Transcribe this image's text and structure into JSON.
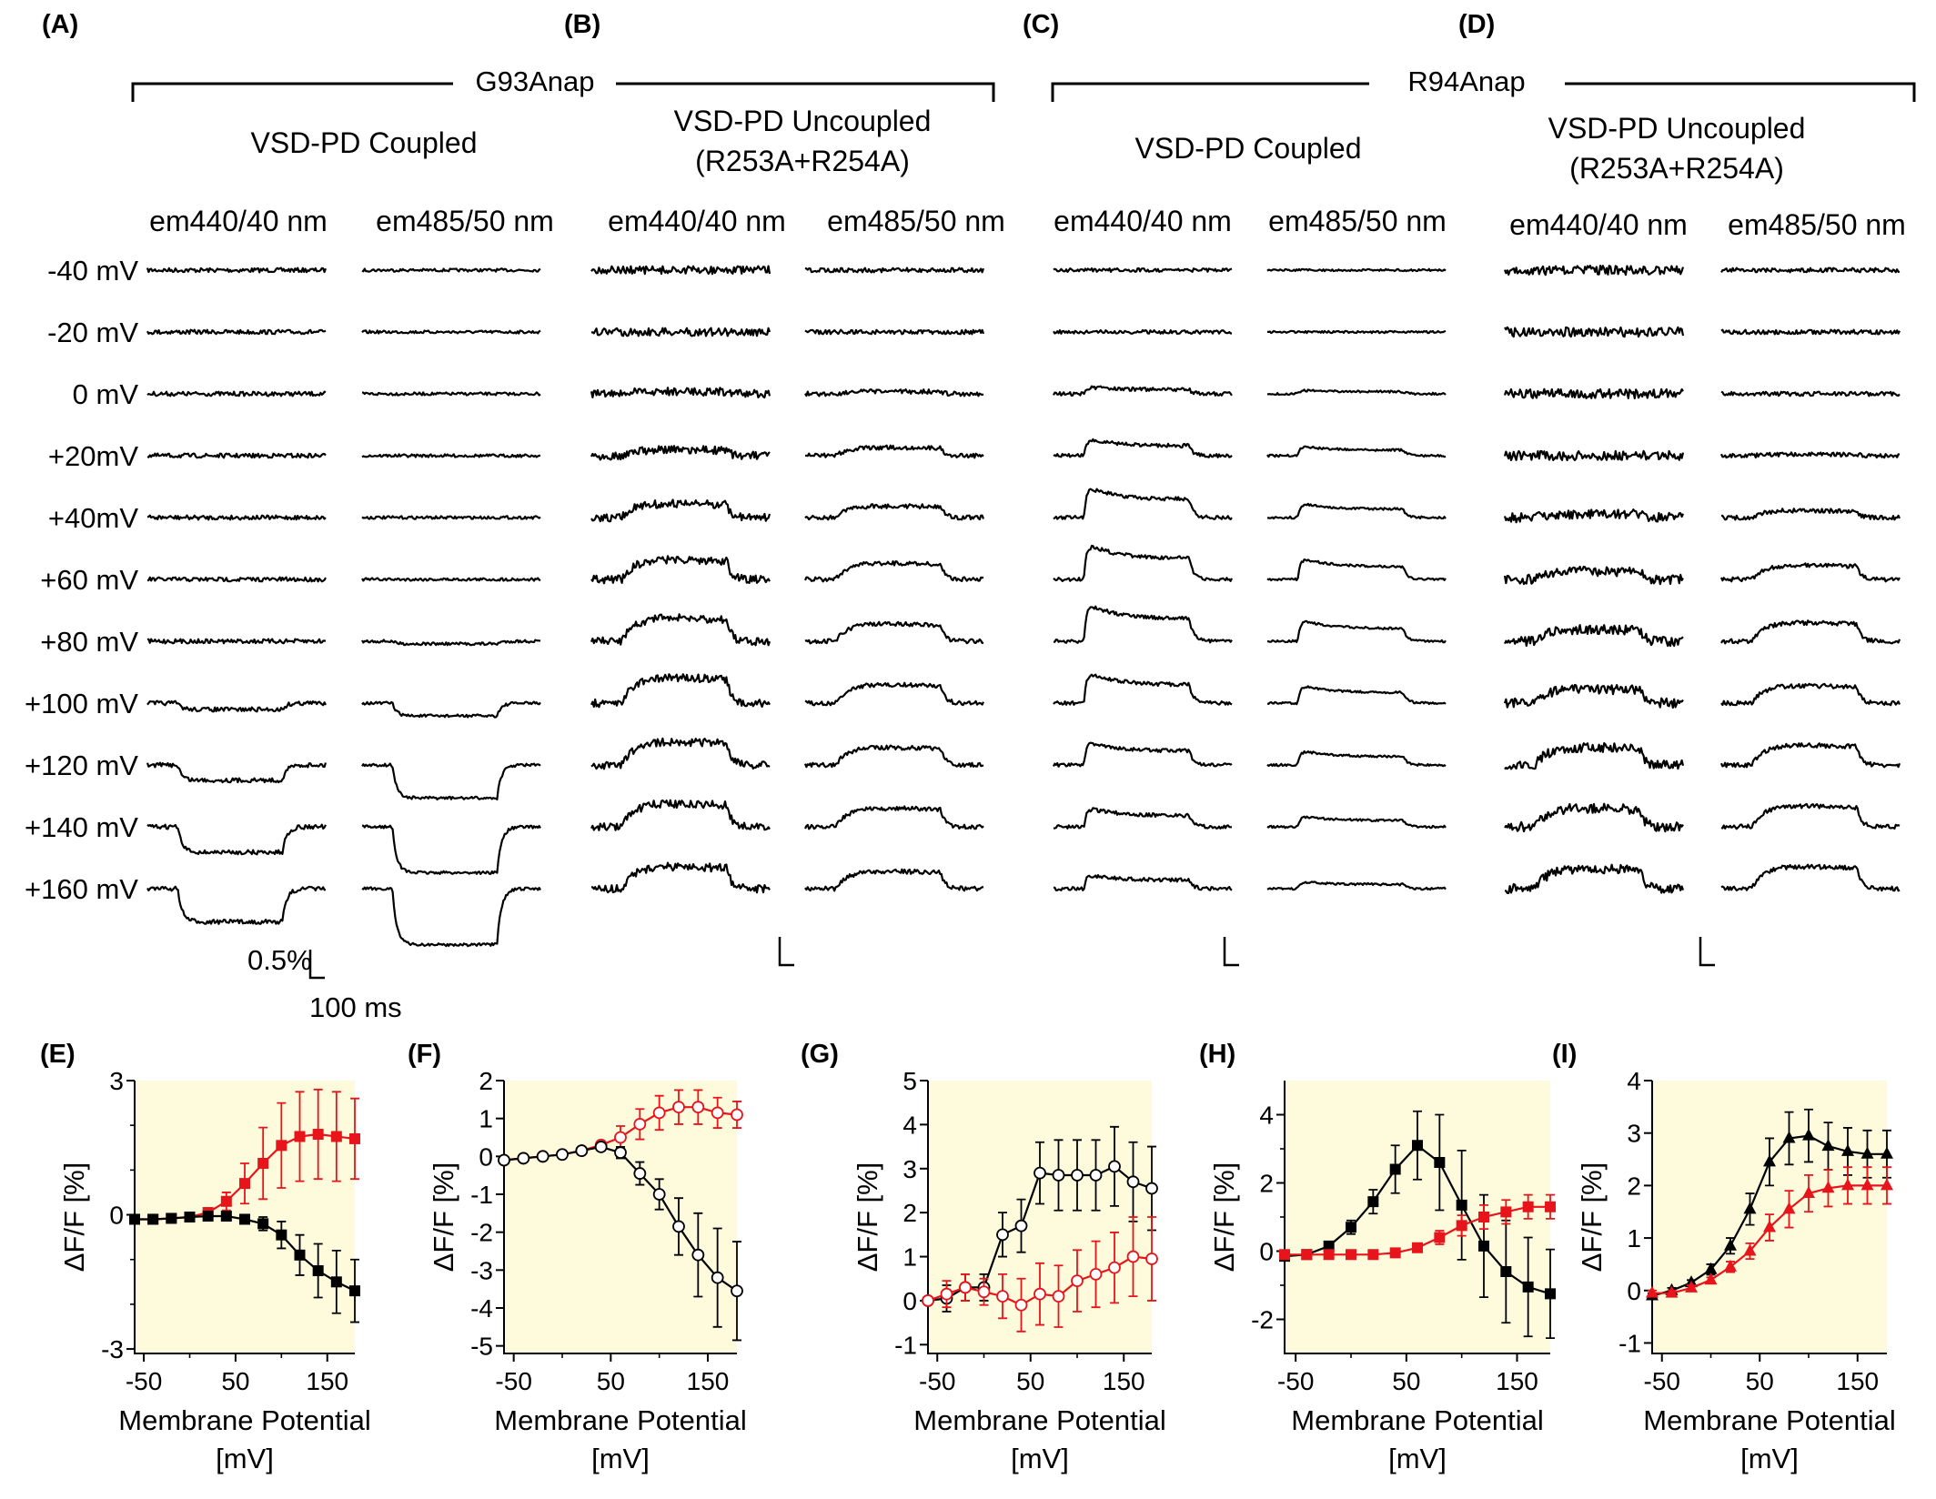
{
  "panel_labels": {
    "A": "(A)",
    "B": "(B)",
    "C": "(C)",
    "D": "(D)",
    "E": "(E)",
    "F": "(F)",
    "G": "(G)",
    "H": "(H)",
    "I": "(I)"
  },
  "groups": [
    {
      "label": "G93Anap"
    },
    {
      "label": "R94Anap"
    }
  ],
  "conditions": {
    "coupled": "VSD-PD Coupled",
    "uncoupled_line1": "VSD-PD Uncoupled",
    "uncoupled_line2": "(R253A+R254A)"
  },
  "emission": {
    "e440": "em440/40 nm",
    "e485": "em485/50 nm"
  },
  "voltages": [
    "-40 mV",
    "-20 mV",
    "0 mV",
    "+20mV",
    "+40mV",
    "+60 mV",
    "+80 mV",
    "+100 mV",
    "+120 mV",
    "+140 mV",
    "+160 mV"
  ],
  "scalebar": {
    "y": "0.5%",
    "x": "100 ms"
  },
  "colors": {
    "em440": "#000000",
    "em485": "#e8141b",
    "plot_bg": "#fdfbdc"
  },
  "trace_panels": [
    {
      "id": "A",
      "em440_amp": [
        0,
        0,
        0,
        0,
        0,
        0,
        0,
        -0.25,
        -0.6,
        -1.0,
        -1.3
      ],
      "em485_amp": [
        0,
        0,
        0,
        0,
        0,
        0,
        -0.1,
        -0.5,
        -1.3,
        -1.8,
        -2.2
      ],
      "noise440": 0.12,
      "noise485": 0.08,
      "kind": "step"
    },
    {
      "id": "B",
      "em440_amp": [
        0,
        0,
        0.1,
        0.25,
        0.6,
        0.85,
        1.0,
        1.1,
        1.0,
        1.0,
        0.95
      ],
      "em485_amp": [
        0,
        0,
        0.1,
        0.35,
        0.5,
        0.7,
        0.75,
        0.8,
        0.75,
        0.8,
        0.75
      ],
      "noise440": 0.22,
      "noise485": 0.12,
      "kind": "slow"
    },
    {
      "id": "C",
      "em440_amp": [
        0,
        0,
        0.3,
        0.7,
        1.3,
        1.5,
        1.6,
        1.3,
        1.0,
        0.8,
        0.6
      ],
      "em485_amp": [
        0,
        0,
        0.15,
        0.4,
        0.6,
        0.9,
        0.9,
        0.75,
        0.6,
        0.45,
        0.3
      ],
      "noise440": 0.1,
      "noise485": 0.06,
      "kind": "peak"
    },
    {
      "id": "D",
      "em440_amp": [
        0,
        0,
        0,
        0,
        0.15,
        0.35,
        0.5,
        0.6,
        0.75,
        0.8,
        0.85
      ],
      "em485_amp": [
        0,
        0,
        0,
        0.05,
        0.3,
        0.6,
        0.8,
        0.75,
        0.85,
        0.9,
        0.95
      ],
      "noise440": 0.26,
      "noise485": 0.12,
      "kind": "slow"
    }
  ],
  "chart_data": [
    {
      "id": "E",
      "type": "line",
      "xlabel": "Membrane Potential [mV]",
      "ylabel": "ΔF/F [%]",
      "ylim": [
        -3.1,
        3
      ],
      "xlim": [
        -60,
        180
      ],
      "xticks": [
        -50,
        50,
        150
      ],
      "yticks": [
        -3,
        0,
        3
      ],
      "minor_yticks": [
        -2,
        -1,
        1,
        2
      ],
      "minor_xticks": [
        0,
        100
      ],
      "x": [
        -60,
        -40,
        -20,
        0,
        20,
        40,
        60,
        80,
        100,
        120,
        140,
        160,
        180
      ],
      "series": [
        {
          "color": "#e8141b",
          "marker": "square-filled",
          "values": [
            -0.1,
            -0.1,
            -0.08,
            -0.05,
            0.05,
            0.3,
            0.7,
            1.15,
            1.55,
            1.75,
            1.8,
            1.75,
            1.7
          ],
          "err": [
            0.05,
            0.05,
            0.05,
            0.05,
            0.1,
            0.2,
            0.45,
            0.8,
            0.95,
            1.0,
            1.0,
            1.0,
            0.9
          ]
        },
        {
          "color": "#000000",
          "marker": "square-filled",
          "values": [
            -0.1,
            -0.1,
            -0.08,
            -0.05,
            -0.03,
            -0.03,
            -0.1,
            -0.2,
            -0.45,
            -0.9,
            -1.25,
            -1.5,
            -1.7
          ],
          "err": [
            0.05,
            0.05,
            0.05,
            0.05,
            0.05,
            0.05,
            0.1,
            0.15,
            0.3,
            0.45,
            0.6,
            0.7,
            0.7
          ]
        }
      ]
    },
    {
      "id": "F",
      "type": "line",
      "xlabel": "Membrane Potential [mV]",
      "ylabel": "ΔF/F [%]",
      "ylim": [
        -5.2,
        2
      ],
      "xlim": [
        -60,
        180
      ],
      "xticks": [
        -50,
        50,
        150
      ],
      "yticks": [
        -5,
        -4,
        -3,
        -2,
        -1,
        0,
        1,
        2
      ],
      "minor_xticks": [
        0,
        100
      ],
      "x": [
        -60,
        -40,
        -20,
        0,
        20,
        40,
        60,
        80,
        100,
        120,
        140,
        160,
        180
      ],
      "series": [
        {
          "color": "#e8141b",
          "marker": "circle-open",
          "values": [
            -0.1,
            -0.05,
            0.0,
            0.05,
            0.15,
            0.3,
            0.5,
            0.85,
            1.15,
            1.3,
            1.3,
            1.15,
            1.1
          ],
          "err": [
            0.05,
            0.05,
            0.05,
            0.05,
            0.05,
            0.1,
            0.3,
            0.4,
            0.45,
            0.45,
            0.45,
            0.4,
            0.35
          ]
        },
        {
          "color": "#000000",
          "marker": "circle-open",
          "values": [
            -0.1,
            -0.05,
            0.0,
            0.05,
            0.15,
            0.25,
            0.1,
            -0.45,
            -1.0,
            -1.85,
            -2.6,
            -3.2,
            -3.55
          ],
          "err": [
            0.05,
            0.05,
            0.05,
            0.05,
            0.05,
            0.1,
            0.15,
            0.3,
            0.4,
            0.75,
            1.1,
            1.3,
            1.3
          ]
        }
      ]
    },
    {
      "id": "G",
      "type": "line",
      "xlabel": "Membrane Potential [mV]",
      "ylabel": "ΔF/F [%]",
      "ylim": [
        -1.2,
        5
      ],
      "xlim": [
        -60,
        180
      ],
      "xticks": [
        -50,
        50,
        150
      ],
      "yticks": [
        -1,
        0,
        1,
        2,
        3,
        4,
        5
      ],
      "minor_xticks": [
        0,
        100
      ],
      "x": [
        -60,
        -40,
        -20,
        0,
        20,
        40,
        60,
        80,
        100,
        120,
        140,
        160,
        180
      ],
      "series": [
        {
          "color": "#000000",
          "marker": "circle-open",
          "values": [
            0.0,
            0.05,
            0.3,
            0.3,
            1.5,
            1.7,
            2.9,
            2.85,
            2.85,
            2.85,
            3.05,
            2.7,
            2.55
          ],
          "err": [
            0.05,
            0.3,
            0.3,
            0.3,
            0.5,
            0.6,
            0.7,
            0.8,
            0.8,
            0.8,
            0.9,
            0.9,
            0.95
          ]
        },
        {
          "color": "#e8141b",
          "marker": "circle-open",
          "values": [
            0.0,
            0.15,
            0.3,
            0.2,
            0.1,
            -0.1,
            0.15,
            0.1,
            0.45,
            0.6,
            0.75,
            1.0,
            0.95
          ],
          "err": [
            0.05,
            0.3,
            0.3,
            0.3,
            0.5,
            0.6,
            0.7,
            0.7,
            0.7,
            0.75,
            0.8,
            0.9,
            0.95
          ]
        }
      ]
    },
    {
      "id": "H",
      "type": "line",
      "xlabel": "Membrane Potential [mV]",
      "ylabel": "ΔF/F [%]",
      "ylim": [
        -3,
        5
      ],
      "xlim": [
        -60,
        180
      ],
      "xticks": [
        -50,
        50,
        150
      ],
      "yticks": [
        -2,
        0,
        2,
        4
      ],
      "minor_yticks": [
        -1,
        1,
        3
      ],
      "minor_xticks": [
        0,
        100
      ],
      "x": [
        -60,
        -40,
        -20,
        0,
        20,
        40,
        60,
        80,
        100,
        120,
        140,
        160,
        180
      ],
      "series": [
        {
          "color": "#000000",
          "marker": "square-filled",
          "values": [
            -0.15,
            -0.1,
            0.15,
            0.7,
            1.45,
            2.4,
            3.1,
            2.6,
            1.35,
            0.15,
            -0.6,
            -1.05,
            -1.25
          ],
          "err": [
            0.05,
            0.05,
            0.1,
            0.2,
            0.35,
            0.7,
            1.0,
            1.4,
            1.6,
            1.5,
            1.5,
            1.45,
            1.3
          ]
        },
        {
          "color": "#e8141b",
          "marker": "square-filled",
          "values": [
            -0.1,
            -0.1,
            -0.1,
            -0.1,
            -0.1,
            -0.05,
            0.1,
            0.4,
            0.75,
            1.0,
            1.15,
            1.3,
            1.3
          ],
          "err": [
            0.05,
            0.05,
            0.05,
            0.05,
            0.05,
            0.05,
            0.1,
            0.2,
            0.3,
            0.35,
            0.35,
            0.35,
            0.35
          ]
        }
      ]
    },
    {
      "id": "I",
      "type": "line",
      "xlabel": "Membrane Potential [mV]",
      "ylabel": "ΔF/F [%]",
      "ylim": [
        -1.2,
        4
      ],
      "xlim": [
        -60,
        180
      ],
      "xticks": [
        -50,
        50,
        150
      ],
      "yticks": [
        -1,
        0,
        1,
        2,
        3,
        4
      ],
      "minor_xticks": [
        0,
        100
      ],
      "x": [
        -60,
        -40,
        -20,
        0,
        20,
        40,
        60,
        80,
        100,
        120,
        140,
        160,
        180
      ],
      "series": [
        {
          "color": "#000000",
          "marker": "triangle-filled",
          "values": [
            -0.1,
            0.0,
            0.15,
            0.4,
            0.85,
            1.55,
            2.45,
            2.9,
            2.95,
            2.75,
            2.65,
            2.6,
            2.6
          ],
          "err": [
            0.05,
            0.05,
            0.05,
            0.1,
            0.15,
            0.3,
            0.45,
            0.5,
            0.5,
            0.45,
            0.45,
            0.45,
            0.45
          ]
        },
        {
          "color": "#e8141b",
          "marker": "triangle-filled",
          "values": [
            -0.05,
            -0.05,
            0.05,
            0.2,
            0.45,
            0.75,
            1.2,
            1.55,
            1.85,
            1.95,
            2.0,
            2.0,
            2.0
          ],
          "err": [
            0.05,
            0.05,
            0.05,
            0.05,
            0.1,
            0.15,
            0.25,
            0.35,
            0.35,
            0.35,
            0.35,
            0.35,
            0.35
          ]
        }
      ]
    }
  ]
}
